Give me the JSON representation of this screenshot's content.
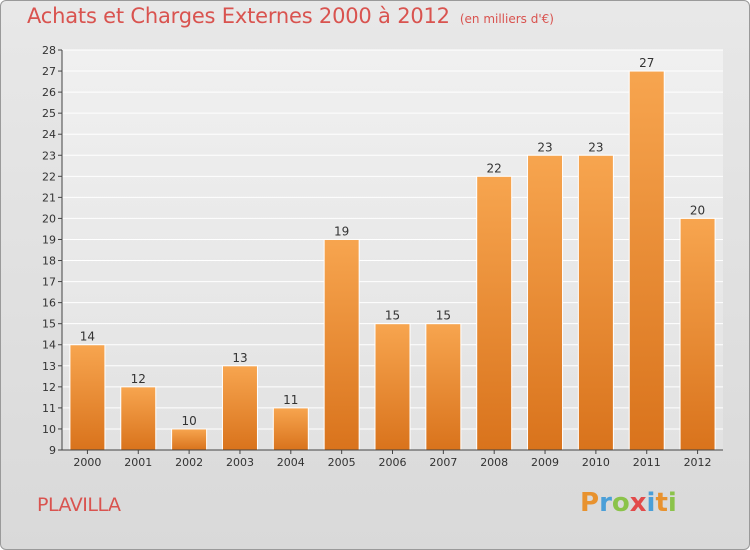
{
  "header": {
    "title": "Achats et Charges Externes 2000 à 2012",
    "subtitle": "(en milliers d'€)"
  },
  "commune": "PLAVILLA",
  "logo": {
    "letters": [
      "P",
      "r",
      "o",
      "x",
      "i",
      "t",
      "i"
    ],
    "colors": [
      "#e8922e",
      "#4a9fd8",
      "#8bc34a",
      "#e24a4a",
      "#4a9fd8",
      "#e8922e",
      "#8bc34a"
    ]
  },
  "chart_data": {
    "type": "bar",
    "categories": [
      "2000",
      "2001",
      "2002",
      "2003",
      "2004",
      "2005",
      "2006",
      "2007",
      "2008",
      "2009",
      "2010",
      "2011",
      "2012"
    ],
    "values": [
      14,
      12,
      10,
      13,
      11,
      19,
      15,
      15,
      22,
      23,
      23,
      27,
      20
    ],
    "title": "Achats et Charges Externes 2000 à 2012",
    "subtitle": "(en milliers d'€)",
    "ylim": [
      9,
      28
    ],
    "yticks": [
      9,
      10,
      11,
      12,
      13,
      14,
      15,
      16,
      17,
      18,
      19,
      20,
      21,
      22,
      23,
      24,
      25,
      26,
      27,
      28
    ],
    "grid": true,
    "data_labels": true,
    "colors": {
      "bar_top": "#f7a54f",
      "bar_bottom": "#d9731c",
      "label": "#333333",
      "axis": "#444444",
      "grid": "#ffffff"
    }
  }
}
